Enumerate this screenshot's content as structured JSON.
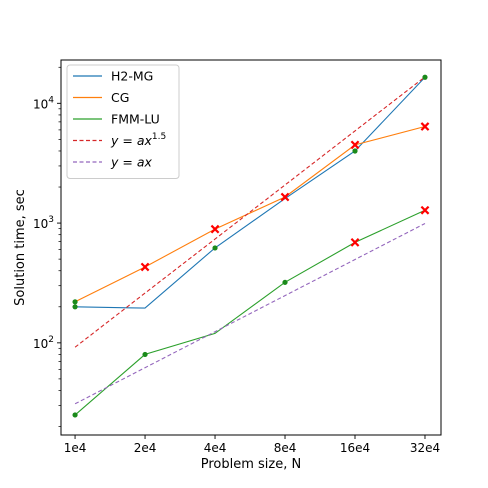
{
  "chart_data": {
    "type": "line",
    "title": "",
    "xlabel": "Problem size, N",
    "ylabel": "Solution time, sec",
    "x_scale": "log2",
    "y_scale": "log10",
    "x": [
      10000,
      20000,
      40000,
      80000,
      160000,
      320000
    ],
    "x_tick_labels": [
      "1e4",
      "2e4",
      "4e4",
      "8e4",
      "16e4",
      "32e4"
    ],
    "xlim": [
      8700,
      375000
    ],
    "ylim": [
      17,
      23000
    ],
    "y_ticks": [
      {
        "value": 100,
        "base": "10",
        "exp": "2"
      },
      {
        "value": 1000,
        "base": "10",
        "exp": "3"
      },
      {
        "value": 10000,
        "base": "10",
        "exp": "4"
      }
    ],
    "legend_position": "top-left",
    "grid": false,
    "series": [
      {
        "name": "H2-MG",
        "style": "solid",
        "color": "#1f77b4",
        "values": [
          200,
          195,
          620,
          1600,
          4000,
          16500
        ],
        "point_marker": "none"
      },
      {
        "name": "CG",
        "style": "solid",
        "color": "#ff7f0e",
        "values": [
          220,
          430,
          890,
          1650,
          4500,
          6400
        ],
        "point_marker": "none"
      },
      {
        "name": "FMM-LU",
        "style": "solid",
        "color": "#2ca02c",
        "values": [
          25,
          80,
          120,
          320,
          690,
          1280
        ],
        "point_marker": "none"
      },
      {
        "name": "y = ax^1.5",
        "style": "dashed",
        "color": "#d62728",
        "values": [
          92,
          260,
          735,
          2080,
          5880,
          16630
        ],
        "point_marker": "none"
      },
      {
        "name": "y = ax",
        "style": "dashed",
        "color": "#9467bd",
        "values": [
          31,
          62,
          124,
          248,
          496,
          992
        ],
        "point_marker": "none"
      }
    ],
    "markers": [
      {
        "kind": "dot",
        "color": "#1a8a1a",
        "points": [
          [
            10000,
            200
          ],
          [
            10000,
            220
          ],
          [
            10000,
            25
          ],
          [
            20000,
            80
          ],
          [
            40000,
            620
          ],
          [
            80000,
            320
          ],
          [
            160000,
            4000
          ],
          [
            320000,
            16500
          ]
        ]
      },
      {
        "kind": "x",
        "color": "#ff0000",
        "points": [
          [
            20000,
            430
          ],
          [
            40000,
            890
          ],
          [
            80000,
            1650
          ],
          [
            160000,
            690
          ],
          [
            160000,
            4500
          ],
          [
            320000,
            6400
          ],
          [
            320000,
            1280
          ]
        ]
      }
    ]
  }
}
